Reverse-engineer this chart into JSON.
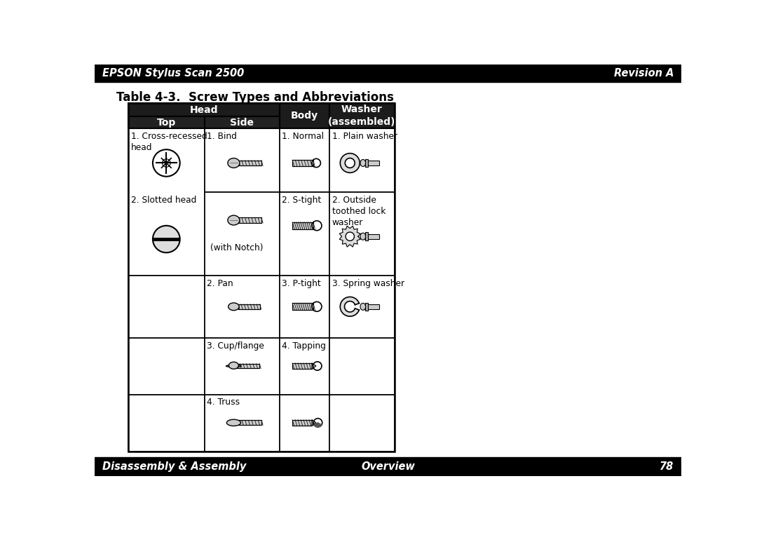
{
  "title": "Table 4-3.  Screw Types and Abbreviations",
  "top_bar_left": "EPSON Stylus Scan 2500",
  "top_bar_right": "Revision A",
  "bot_bar_left": "Disassembly & Assembly",
  "bot_bar_center": "Overview",
  "bot_bar_right": "78",
  "bg_color": "#ffffff",
  "bar_color": "#000000",
  "hdr_color": "#1a1a1a",
  "sub_hdr_color": "#2a2a2a"
}
